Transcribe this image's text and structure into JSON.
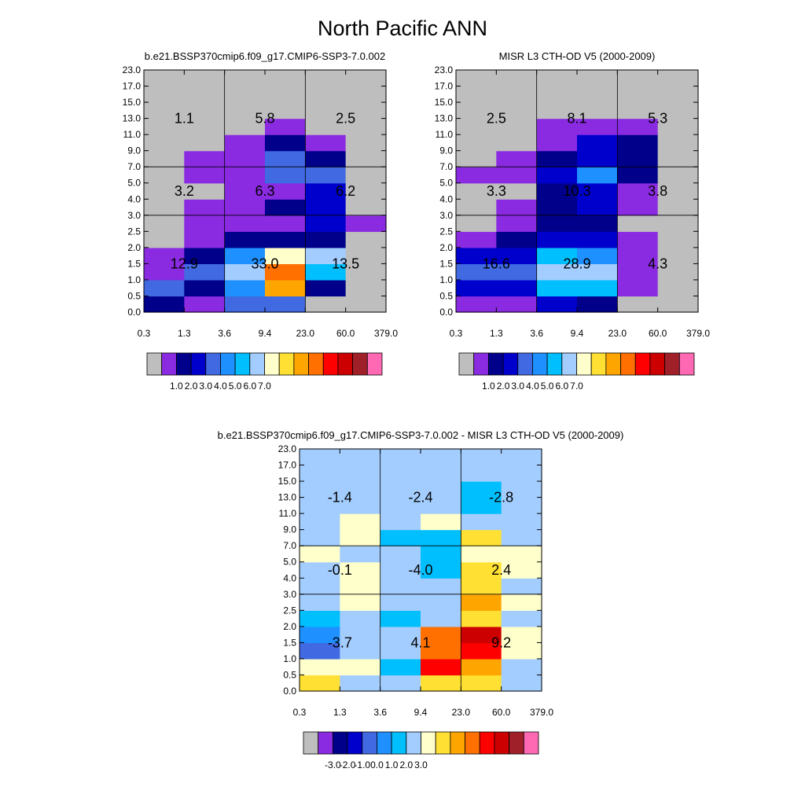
{
  "figure": {
    "title": "North Pacific ANN"
  },
  "palette": [
    "#bebebe",
    "#8a2be2",
    "#00008b",
    "#0000cd",
    "#4169e1",
    "#1e90ff",
    "#00bfff",
    "#a3cdfe",
    "#ffffcc",
    "#ffe033",
    "#ffa500",
    "#ff7000",
    "#ff0000",
    "#cc0000",
    "#a0202a",
    "#ff69b4"
  ],
  "chart_data": [
    {
      "type": "heatmap",
      "title": "b.e21.BSSP370cmip6.f09_g17.CMIP6-SSP3-7.0.002",
      "x_ticks": [
        "0.3",
        "1.3",
        "3.6",
        "9.4",
        "23.0",
        "60.0",
        "379.0"
      ],
      "y_ticks": [
        "0.0",
        "0.5",
        "1.0",
        "1.5",
        "2.0",
        "2.5",
        "3.0",
        "4.0",
        "5.0",
        "7.0",
        "9.0",
        "11.0",
        "13.0",
        "15.0",
        "17.0",
        "23.0"
      ],
      "color_index_grid_bottom_to_top": [
        [
          2,
          1,
          4,
          4,
          0,
          0
        ],
        [
          4,
          2,
          5,
          10,
          2,
          0
        ],
        [
          1,
          4,
          7,
          11,
          6,
          0
        ],
        [
          1,
          2,
          5,
          8,
          7,
          0
        ],
        [
          0,
          1,
          2,
          2,
          2,
          0
        ],
        [
          0,
          1,
          1,
          1,
          3,
          1
        ],
        [
          0,
          1,
          1,
          2,
          3,
          0
        ],
        [
          0,
          0,
          1,
          1,
          3,
          0
        ],
        [
          0,
          1,
          1,
          4,
          4,
          0
        ],
        [
          0,
          1,
          1,
          4,
          2,
          0
        ],
        [
          0,
          0,
          1,
          2,
          1,
          0
        ],
        [
          0,
          0,
          0,
          1,
          0,
          0
        ],
        [
          0,
          0,
          0,
          0,
          0,
          0
        ],
        [
          0,
          0,
          0,
          0,
          0,
          0
        ],
        [
          0,
          0,
          0,
          0,
          0,
          0
        ]
      ],
      "annotations": [
        {
          "x": 0,
          "y": 2,
          "text": "1.1"
        },
        {
          "x": 1,
          "y": 2,
          "text": "5.8"
        },
        {
          "x": 2,
          "y": 2,
          "text": "2.5"
        },
        {
          "x": 0,
          "y": 1,
          "text": "3.2"
        },
        {
          "x": 1,
          "y": 1,
          "text": "6.3"
        },
        {
          "x": 2,
          "y": 1,
          "text": "6.2"
        },
        {
          "x": 0,
          "y": 0,
          "text": "12.9"
        },
        {
          "x": 1,
          "y": 0,
          "text": "33.0"
        },
        {
          "x": 2,
          "y": 0,
          "text": "13.5"
        }
      ],
      "colorbar_labels": [
        "1.0",
        "2.0",
        "3.0",
        "4.0",
        "5.0",
        "6.0",
        "7.0"
      ]
    },
    {
      "type": "heatmap",
      "title": "MISR L3 CTH-OD V5 (2000-2009)",
      "x_ticks": [
        "0.3",
        "1.3",
        "3.6",
        "9.4",
        "23.0",
        "60.0",
        "379.0"
      ],
      "y_ticks": [
        "0.0",
        "0.5",
        "1.0",
        "1.5",
        "2.0",
        "2.5",
        "3.0",
        "4.0",
        "5.0",
        "7.0",
        "9.0",
        "11.0",
        "13.0",
        "15.0",
        "17.0",
        "23.0"
      ],
      "color_index_grid_bottom_to_top": [
        [
          1,
          1,
          3,
          2,
          0,
          0
        ],
        [
          3,
          3,
          6,
          6,
          1,
          0
        ],
        [
          4,
          4,
          7,
          7,
          1,
          0
        ],
        [
          3,
          3,
          6,
          5,
          1,
          0
        ],
        [
          1,
          2,
          3,
          3,
          1,
          0
        ],
        [
          0,
          1,
          2,
          2,
          0,
          0
        ],
        [
          0,
          1,
          2,
          3,
          1,
          0
        ],
        [
          0,
          0,
          2,
          3,
          1,
          0
        ],
        [
          1,
          1,
          3,
          5,
          2,
          0
        ],
        [
          0,
          1,
          2,
          3,
          2,
          0
        ],
        [
          0,
          0,
          1,
          3,
          2,
          0
        ],
        [
          0,
          0,
          1,
          1,
          1,
          0
        ],
        [
          0,
          0,
          0,
          0,
          0,
          0
        ],
        [
          0,
          0,
          0,
          0,
          0,
          0
        ],
        [
          0,
          0,
          0,
          0,
          0,
          0
        ]
      ],
      "annotations": [
        {
          "x": 0,
          "y": 2,
          "text": "2.5"
        },
        {
          "x": 1,
          "y": 2,
          "text": "8.1"
        },
        {
          "x": 2,
          "y": 2,
          "text": "5.3"
        },
        {
          "x": 0,
          "y": 1,
          "text": "3.3"
        },
        {
          "x": 1,
          "y": 1,
          "text": "10.3"
        },
        {
          "x": 2,
          "y": 1,
          "text": "3.8"
        },
        {
          "x": 0,
          "y": 0,
          "text": "16.6"
        },
        {
          "x": 1,
          "y": 0,
          "text": "28.9"
        },
        {
          "x": 2,
          "y": 0,
          "text": "4.3"
        }
      ],
      "colorbar_labels": [
        "1.0",
        "2.0",
        "3.0",
        "4.0",
        "5.0",
        "6.0",
        "7.0"
      ]
    },
    {
      "type": "heatmap",
      "title": "b.e21.BSSP370cmip6.f09_g17.CMIP6-SSP3-7.0.002 - MISR L3 CTH-OD V5 (2000-2009)",
      "x_ticks": [
        "0.3",
        "1.3",
        "3.6",
        "9.4",
        "23.0",
        "60.0",
        "379.0"
      ],
      "y_ticks": [
        "0.0",
        "0.5",
        "1.0",
        "1.5",
        "2.0",
        "2.5",
        "3.0",
        "4.0",
        "5.0",
        "7.0",
        "9.0",
        "11.0",
        "13.0",
        "15.0",
        "17.0",
        "23.0"
      ],
      "color_index_grid_bottom_to_top": [
        [
          9,
          7,
          7,
          9,
          9,
          7
        ],
        [
          8,
          8,
          6,
          12,
          10,
          7
        ],
        [
          4,
          7,
          7,
          11,
          12,
          8
        ],
        [
          5,
          7,
          7,
          11,
          13,
          8
        ],
        [
          6,
          7,
          6,
          7,
          9,
          7
        ],
        [
          7,
          8,
          7,
          7,
          10,
          8
        ],
        [
          7,
          8,
          7,
          7,
          9,
          7
        ],
        [
          7,
          8,
          7,
          6,
          9,
          8
        ],
        [
          8,
          7,
          7,
          6,
          8,
          8
        ],
        [
          7,
          8,
          6,
          6,
          9,
          7
        ],
        [
          7,
          8,
          7,
          8,
          7,
          7
        ],
        [
          7,
          7,
          7,
          7,
          6,
          7
        ],
        [
          7,
          7,
          7,
          7,
          6,
          7
        ],
        [
          7,
          7,
          7,
          7,
          7,
          7
        ],
        [
          7,
          7,
          7,
          7,
          7,
          7
        ]
      ],
      "annotations": [
        {
          "x": 0,
          "y": 2,
          "text": "-1.4"
        },
        {
          "x": 1,
          "y": 2,
          "text": "-2.4"
        },
        {
          "x": 2,
          "y": 2,
          "text": "-2.8"
        },
        {
          "x": 0,
          "y": 1,
          "text": "-0.1"
        },
        {
          "x": 1,
          "y": 1,
          "text": "-4.0"
        },
        {
          "x": 2,
          "y": 1,
          "text": "2.4"
        },
        {
          "x": 0,
          "y": 0,
          "text": "-3.7"
        },
        {
          "x": 1,
          "y": 0,
          "text": "4.1"
        },
        {
          "x": 2,
          "y": 0,
          "text": "9.2"
        }
      ],
      "colorbar_labels": [
        "-3.0",
        "-2.0",
        "-1.0",
        "0.0",
        "1.0",
        "2.0",
        "3.0"
      ]
    }
  ]
}
